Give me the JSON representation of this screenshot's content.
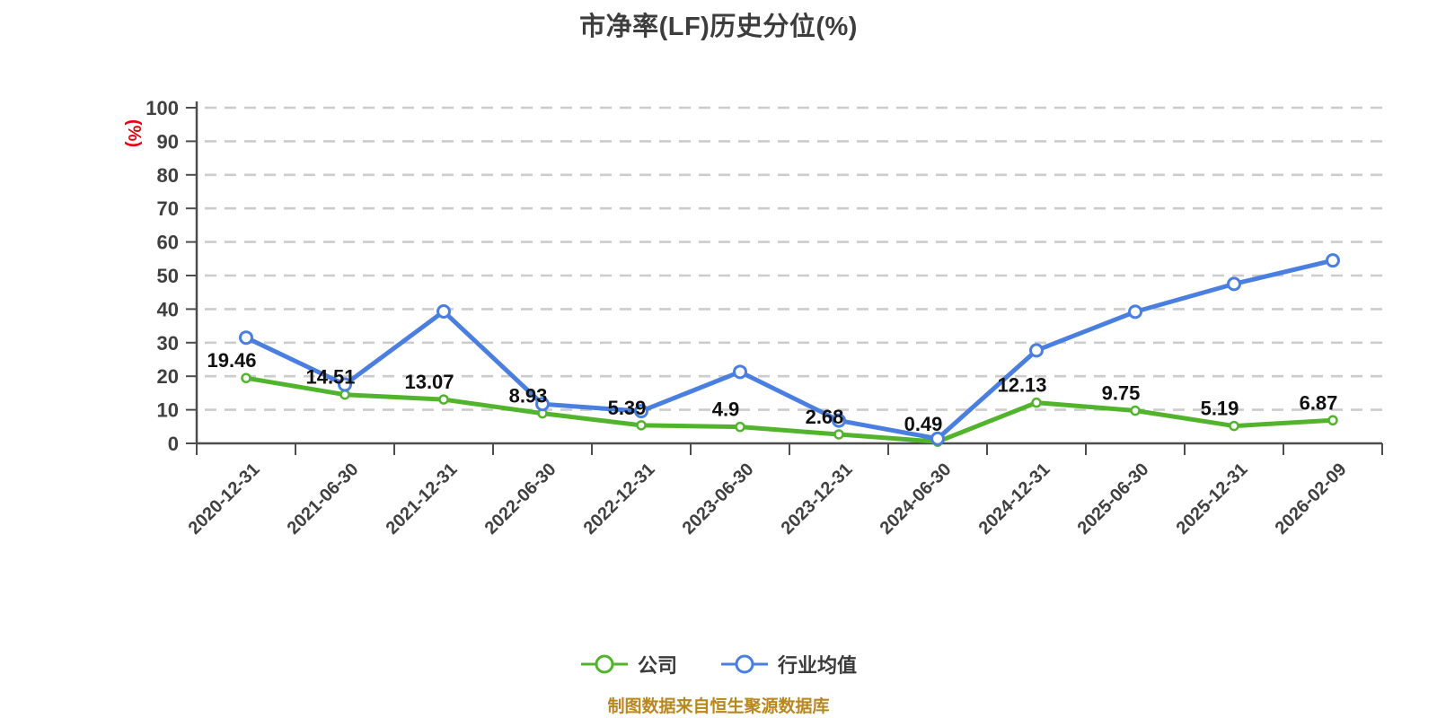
{
  "chart_data": {
    "type": "line",
    "title": "市净率(LF)历史分位(%)",
    "caption": "制图数据来自恒生聚源数据库",
    "y_axis_name": "(%)",
    "ylim": [
      0,
      100
    ],
    "y_ticks": [
      0,
      10,
      20,
      30,
      40,
      50,
      60,
      70,
      80,
      90,
      100
    ],
    "grid": "horizontal dashed",
    "legend_position": "bottom",
    "categories": [
      "2020-12-31",
      "2021-06-30",
      "2021-12-31",
      "2022-06-30",
      "2022-12-31",
      "2023-06-30",
      "2023-12-31",
      "2024-06-30",
      "2024-12-31",
      "2025-06-30",
      "2025-12-31",
      "2026-02-09"
    ],
    "series": [
      {
        "name": "公司",
        "color": "#52b42c",
        "values": [
          19.46,
          14.51,
          13.07,
          8.93,
          5.39,
          4.9,
          2.68,
          0.49,
          12.13,
          9.75,
          5.19,
          6.87
        ],
        "labels": [
          "19.46",
          "14.51",
          "13.07",
          "8.93",
          "5.39",
          "4.9",
          "2.68",
          "0.49",
          "12.13",
          "9.75",
          "5.19",
          "6.87"
        ],
        "labels_visible": true
      },
      {
        "name": "行业均值",
        "color": "#4a7fe0",
        "values": [
          31.5,
          17.5,
          39.3,
          11.7,
          9.6,
          21.3,
          6.8,
          1.4,
          27.7,
          39.2,
          47.5,
          54.5
        ],
        "labels_visible": false
      }
    ],
    "colors": {
      "background": "#ffffff",
      "grid": "#cccccc",
      "axis": "#4d4d4d",
      "tick_label": "#404040",
      "data_label": "#111111",
      "legend_text": "#3a3a3a",
      "caption": "#b8871d",
      "y_axis_name": "#e60012"
    }
  }
}
